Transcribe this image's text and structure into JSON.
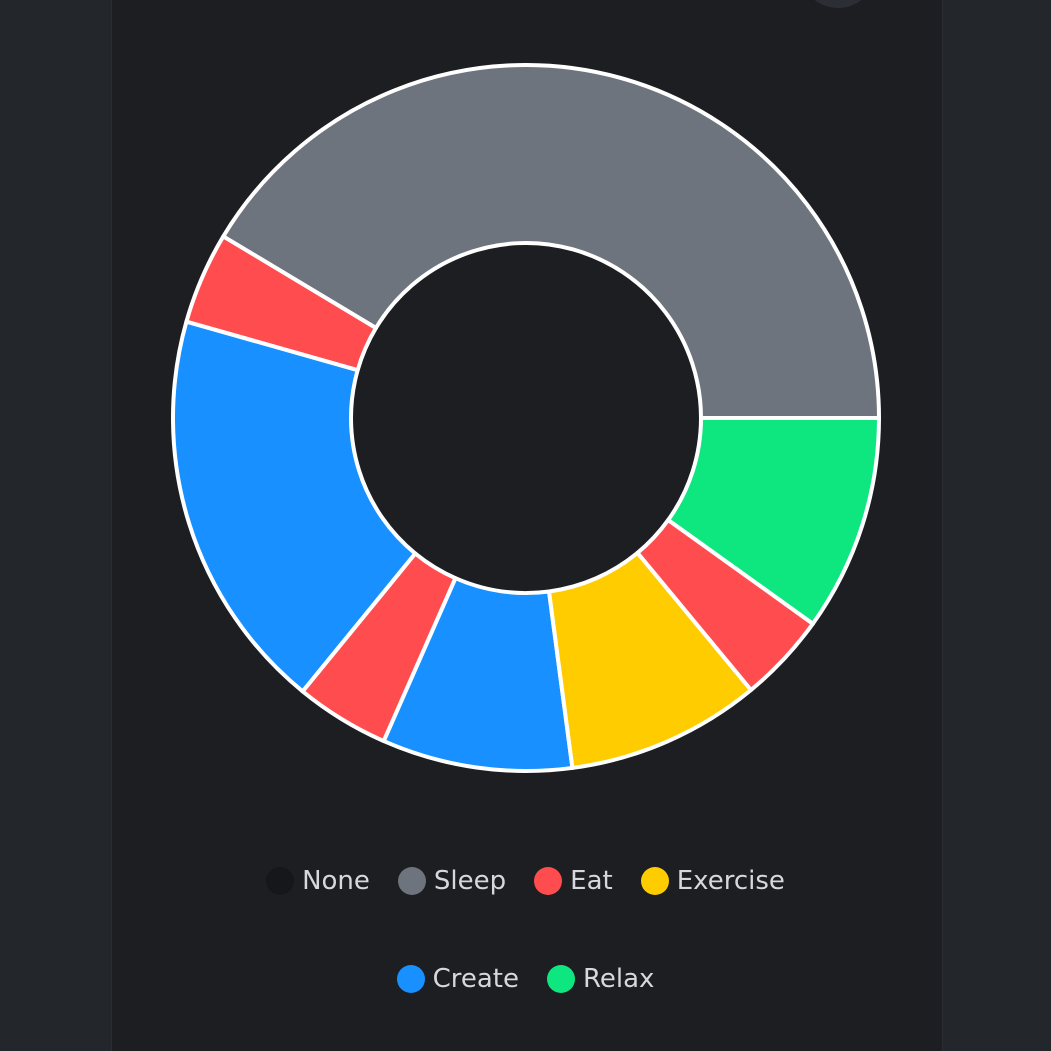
{
  "chart_data": {
    "type": "pie",
    "donut": true,
    "legend_position": "bottom",
    "categories": [
      "None",
      "Sleep",
      "Eat",
      "Exercise",
      "Create",
      "Relax"
    ],
    "colors": {
      "None": "#15171a",
      "Sleep": "#6e747d",
      "Eat": "#ff4d4f",
      "Exercise": "#ffcc00",
      "Create": "#1890ff",
      "Relax": "#0ee67f"
    },
    "slices": [
      {
        "category": "Sleep",
        "value": 41.4
      },
      {
        "category": "Eat",
        "value": 4.2
      },
      {
        "category": "Create",
        "value": 18.5
      },
      {
        "category": "Eat",
        "value": 4.3
      },
      {
        "category": "Create",
        "value": 8.7
      },
      {
        "category": "Exercise",
        "value": 8.9
      },
      {
        "category": "Eat",
        "value": 4.1
      },
      {
        "category": "Relax",
        "value": 9.9
      }
    ]
  },
  "legend": {
    "row1": [
      "None",
      "Sleep",
      "Eat",
      "Exercise"
    ],
    "row2": [
      "Create",
      "Relax"
    ]
  },
  "colors": {
    "page_bg": "#23262b",
    "panel_bg": "#1c1e22",
    "slice_border": "#ffffff",
    "legend_text": "#d6d8dc"
  }
}
